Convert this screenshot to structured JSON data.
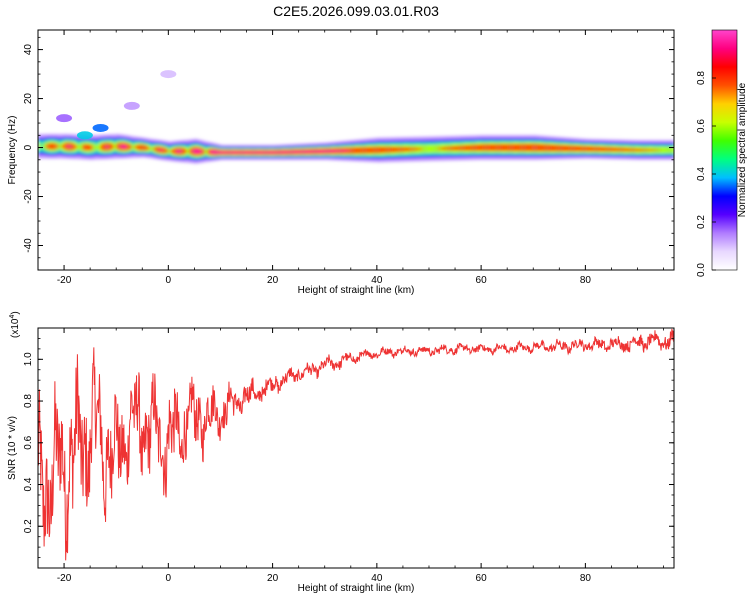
{
  "title": "C2E5.2026.099.03.01.R03",
  "colors": {
    "line": "#ee3333",
    "axis": "#000000",
    "colormap": [
      "#ffffff",
      "#e8d8ff",
      "#b07cff",
      "#5500ff",
      "#0000ff",
      "#00bfff",
      "#00ff80",
      "#40ff00",
      "#c8ff00",
      "#ffd000",
      "#ff5000",
      "#ff0000",
      "#ff0080",
      "#ff44cc"
    ]
  },
  "chart_data": [
    {
      "type": "heatmap",
      "name": "spectrogram",
      "xlabel": "Height of straight line (km)",
      "ylabel": "Frequency (Hz)",
      "xlim": [
        -25,
        97
      ],
      "ylim": [
        -50,
        48
      ],
      "xticks": [
        -20,
        0,
        20,
        40,
        60,
        80
      ],
      "xtick_labels": [
        "-20",
        "0",
        "20",
        "40",
        "60",
        "80"
      ],
      "yticks": [
        -40,
        -20,
        0,
        20,
        40
      ],
      "ytick_labels": [
        "-40",
        "-20",
        "0",
        "20",
        "40"
      ],
      "grid": false,
      "colorbar": {
        "label": "Normalized spectral amplitude",
        "range": [
          0,
          1
        ],
        "ticks": [
          0.0,
          0.2,
          0.4,
          0.6,
          0.8
        ],
        "tick_labels": [
          "0.0",
          "0.2",
          "0.4",
          "0.6",
          "0.8"
        ]
      },
      "band": {
        "x": [
          -25,
          -20,
          -15,
          -10,
          -5,
          0,
          5,
          10,
          20,
          30,
          40,
          50,
          60,
          70,
          80,
          90,
          97
        ],
        "center_hz": [
          0.5,
          0.5,
          0.0,
          0.5,
          0.0,
          -1.5,
          -1.5,
          -2.0,
          -2.0,
          -1.5,
          -1.0,
          -0.5,
          0.0,
          0.0,
          -0.5,
          -1.0,
          -1.0
        ],
        "halfwidth_hz": [
          5,
          5,
          5,
          5,
          4,
          4,
          5,
          3,
          3,
          3.5,
          5,
          5,
          5,
          5,
          4,
          4,
          4
        ],
        "peak_amplitude": [
          0.7,
          0.85,
          0.75,
          0.9,
          0.8,
          0.85,
          0.9,
          0.95,
          0.95,
          0.95,
          0.85,
          0.7,
          0.85,
          0.9,
          0.85,
          0.75,
          0.7
        ]
      },
      "blobs": [
        {
          "x": -16,
          "y": 5,
          "amplitude": 0.35
        },
        {
          "x": -13,
          "y": 8,
          "amplitude": 0.3
        },
        {
          "x": -20,
          "y": 12,
          "amplitude": 0.12
        },
        {
          "x": -7,
          "y": 17,
          "amplitude": 0.08
        },
        {
          "x": 0,
          "y": 30,
          "amplitude": 0.05
        }
      ]
    },
    {
      "type": "line",
      "name": "snr",
      "xlabel": "Height of straight line (km)",
      "ylabel": "SNR (10 * v/v)",
      "multiplier_label": "(x10",
      "multiplier_exp": "4",
      "multiplier_close": ")",
      "xlim": [
        -25,
        97
      ],
      "ylim": [
        0.0,
        1.15
      ],
      "xticks": [
        -20,
        0,
        20,
        40,
        60,
        80
      ],
      "xtick_labels": [
        "-20",
        "0",
        "20",
        "40",
        "60",
        "80"
      ],
      "yticks": [
        0.2,
        0.4,
        0.6,
        0.8,
        1.0
      ],
      "ytick_labels": [
        "0.2",
        "0.4",
        "0.6",
        "0.8",
        "1.0"
      ],
      "grid": false,
      "x": [
        -25,
        -22,
        -20,
        -18,
        -16,
        -14,
        -12,
        -10,
        -8,
        -6,
        -4,
        -2,
        0,
        2,
        4,
        6,
        8,
        10,
        12,
        15,
        18,
        20,
        22,
        25,
        28,
        30,
        33,
        36,
        40,
        45,
        50,
        55,
        60,
        65,
        70,
        75,
        80,
        85,
        90,
        95,
        97
      ],
      "y": [
        0.35,
        0.45,
        0.5,
        0.55,
        0.6,
        0.7,
        0.55,
        0.55,
        0.65,
        0.7,
        0.65,
        0.65,
        0.6,
        0.65,
        0.7,
        0.72,
        0.73,
        0.75,
        0.78,
        0.82,
        0.85,
        0.88,
        0.9,
        0.93,
        0.95,
        0.97,
        0.99,
        1.01,
        1.03,
        1.04,
        1.04,
        1.05,
        1.05,
        1.05,
        1.06,
        1.06,
        1.07,
        1.07,
        1.08,
        1.09,
        1.09
      ],
      "noise_amplitude": [
        0.3,
        0.3,
        0.3,
        0.3,
        0.3,
        0.25,
        0.25,
        0.22,
        0.2,
        0.22,
        0.2,
        0.2,
        0.2,
        0.18,
        0.16,
        0.14,
        0.12,
        0.1,
        0.08,
        0.06,
        0.05,
        0.04,
        0.04,
        0.03,
        0.03,
        0.03,
        0.03,
        0.025,
        0.02,
        0.02,
        0.02,
        0.02,
        0.02,
        0.02,
        0.02,
        0.025,
        0.025,
        0.03,
        0.035,
        0.04,
        0.04
      ]
    }
  ]
}
